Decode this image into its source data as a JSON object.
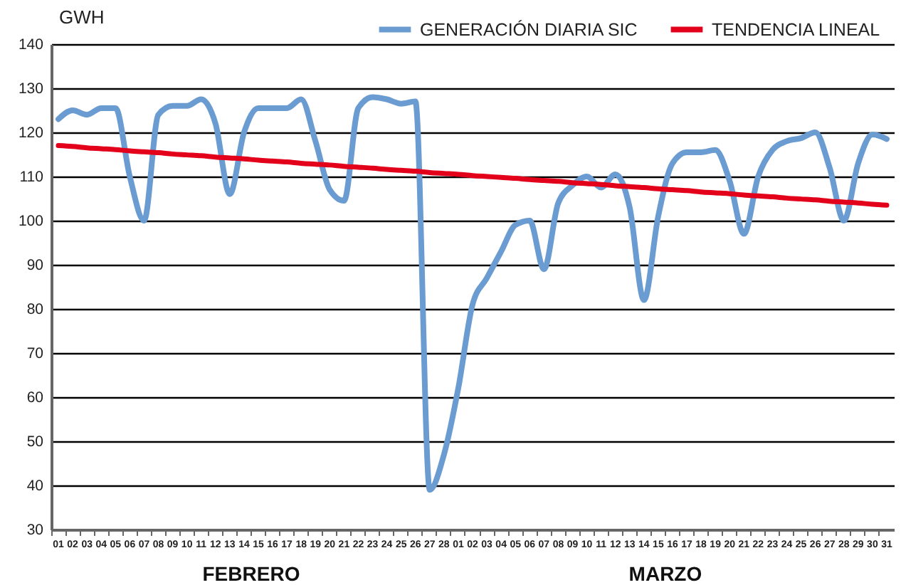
{
  "chart_data": {
    "type": "line",
    "ylabel": "GWH",
    "categories": [
      "01",
      "02",
      "03",
      "04",
      "05",
      "06",
      "07",
      "08",
      "09",
      "10",
      "11",
      "12",
      "13",
      "14",
      "15",
      "16",
      "17",
      "18",
      "19",
      "20",
      "21",
      "22",
      "23",
      "24",
      "25",
      "26",
      "27",
      "28",
      "01",
      "02",
      "03",
      "04",
      "05",
      "06",
      "07",
      "08",
      "09",
      "10",
      "11",
      "12",
      "13",
      "14",
      "15",
      "16",
      "17",
      "18",
      "19",
      "20",
      "21",
      "22",
      "23",
      "24",
      "25",
      "26",
      "27",
      "28",
      "29",
      "30",
      "31"
    ],
    "series": [
      {
        "name": "GENERACIÓN DIARIA SIC",
        "color": "#6a9bd1",
        "values": [
          123,
          125,
          124,
          125.5,
          125.5,
          110,
          100,
          124,
          126,
          126,
          127.5,
          122,
          106,
          120,
          125.5,
          125.5,
          125.5,
          127.5,
          118,
          107,
          104.5,
          125.5,
          128,
          127.5,
          126.5,
          127,
          39,
          47,
          62,
          81,
          87,
          93,
          99,
          100,
          89,
          104,
          108,
          110,
          107.5,
          110.5,
          103,
          82,
          101,
          113,
          115.5,
          115.5,
          116,
          109,
          97,
          110,
          116,
          118,
          118.7,
          120,
          112,
          100,
          113,
          119.5,
          118.5
        ]
      },
      {
        "name": "TENDENCIA LINEAL",
        "color": "#e3001b",
        "values": [
          117,
          116.8,
          116.5,
          116.3,
          116.1,
          115.8,
          115.6,
          115.4,
          115.1,
          114.9,
          114.7,
          114.4,
          114.2,
          114,
          113.7,
          113.5,
          113.3,
          113,
          112.8,
          112.6,
          112.3,
          112.1,
          111.9,
          111.6,
          111.4,
          111.2,
          110.9,
          110.7,
          110.5,
          110.2,
          110,
          109.8,
          109.6,
          109.3,
          109.1,
          108.9,
          108.6,
          108.4,
          108.2,
          107.9,
          107.7,
          107.5,
          107.2,
          107,
          106.8,
          106.5,
          106.3,
          106.1,
          105.8,
          105.6,
          105.4,
          105.1,
          104.9,
          104.7,
          104.4,
          104.2,
          104,
          103.7,
          103.5
        ]
      }
    ],
    "annotations": [
      "FEBRERO",
      "MARZO"
    ],
    "ylim": [
      30,
      140
    ],
    "yticks": [
      30,
      40,
      50,
      60,
      70,
      80,
      90,
      100,
      110,
      120,
      130,
      140
    ],
    "grid": "y",
    "legend": "top right"
  }
}
